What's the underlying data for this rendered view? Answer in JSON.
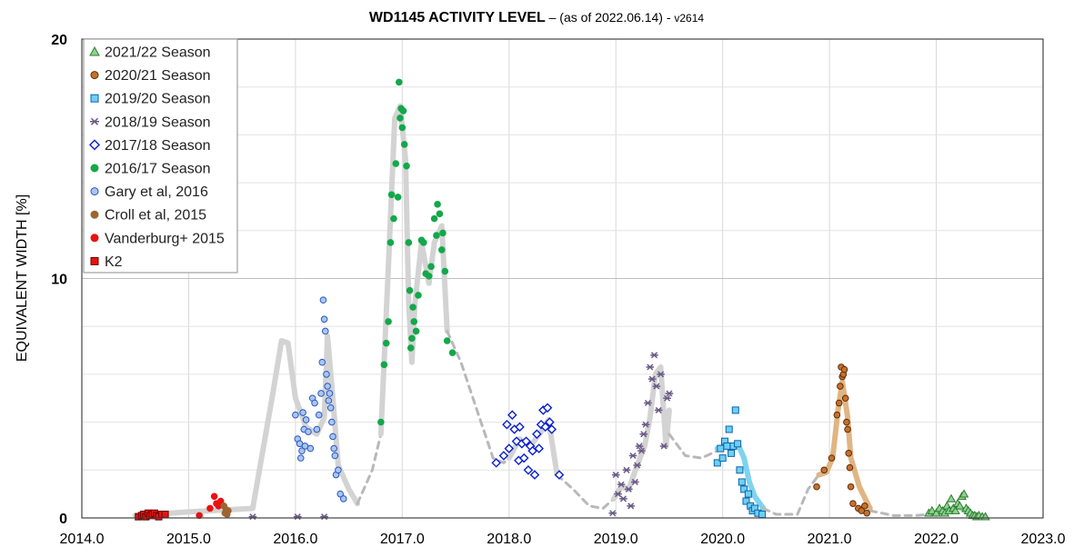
{
  "chart_data": {
    "type": "scatter",
    "title": "WD1145 ACTIVITY LEVEL",
    "subtitle": " – (as of 2022.06.14) - ",
    "version": "v2614",
    "xlabel": "",
    "ylabel": "EQUIVALENT WIDTH [%]",
    "xlim": [
      2014.0,
      2023.0
    ],
    "ylim": [
      0,
      20
    ],
    "x_ticks": [
      "2014.0",
      "2015.0",
      "2016.0",
      "2017.0",
      "2018.0",
      "2019.0",
      "2020.0",
      "2021.0",
      "2022.0",
      "2023.0"
    ],
    "y_ticks": [
      "0",
      "10",
      "20"
    ],
    "grid": true,
    "legend_position": "top-left",
    "trend_lines": [
      {
        "style": "solid",
        "color": "#d3d3d3",
        "x": [
          2015.0,
          2015.6,
          2015.8,
          2015.9,
          2016.0,
          2016.1,
          2016.2,
          2016.3,
          2016.35,
          2016.4,
          2016.5,
          2016.6
        ]
      },
      {
        "style": "solid",
        "color": "#d3d3d3",
        "points": [
          [
            2014.5,
            0.1
          ],
          [
            2015.0,
            0.25
          ],
          [
            2015.6,
            0.4
          ],
          [
            2015.78,
            5.0
          ],
          [
            2015.87,
            7.4
          ],
          [
            2015.93,
            7.3
          ],
          [
            2016.0,
            5.0
          ],
          [
            2016.1,
            3.8
          ],
          [
            2016.2,
            3.5
          ],
          [
            2016.27,
            4.2
          ],
          [
            2016.3,
            7.6
          ],
          [
            2016.35,
            5.0
          ],
          [
            2016.4,
            2.2
          ],
          [
            2016.5,
            1.2
          ],
          [
            2016.58,
            0.6
          ]
        ]
      },
      {
        "style": "dashed",
        "color": "#b8b8b8",
        "points": [
          [
            2016.58,
            0.6
          ],
          [
            2016.72,
            2.0
          ],
          [
            2016.8,
            3.5
          ]
        ]
      },
      {
        "style": "solid",
        "color": "#d3d3d3",
        "points": [
          [
            2016.8,
            3.5
          ],
          [
            2016.87,
            10.5
          ],
          [
            2016.93,
            16.7
          ],
          [
            2016.98,
            17.2
          ],
          [
            2017.03,
            15.0
          ],
          [
            2017.06,
            9.0
          ],
          [
            2017.09,
            6.5
          ],
          [
            2017.12,
            9.0
          ],
          [
            2017.18,
            11.5
          ],
          [
            2017.25,
            9.8
          ],
          [
            2017.3,
            11.5
          ],
          [
            2017.37,
            12.2
          ],
          [
            2017.42,
            7.8
          ]
        ]
      },
      {
        "style": "dashed",
        "color": "#b8b8b8",
        "points": [
          [
            2017.42,
            7.8
          ],
          [
            2017.55,
            6.5
          ],
          [
            2017.7,
            4.5
          ],
          [
            2017.85,
            2.5
          ],
          [
            2017.95,
            2.3
          ],
          [
            2018.0,
            2.5
          ]
        ]
      },
      {
        "style": "solid",
        "color": "#d3d3d3",
        "points": [
          [
            2018.0,
            2.5
          ],
          [
            2018.1,
            3.3
          ],
          [
            2018.2,
            3.0
          ],
          [
            2018.3,
            3.6
          ],
          [
            2018.37,
            4.1
          ],
          [
            2018.45,
            1.8
          ]
        ]
      },
      {
        "style": "dashed",
        "color": "#b8b8b8",
        "points": [
          [
            2018.45,
            1.8
          ],
          [
            2018.6,
            1.2
          ],
          [
            2018.75,
            0.5
          ],
          [
            2018.88,
            0.4
          ],
          [
            2018.98,
            0.8
          ]
        ]
      },
      {
        "style": "solid",
        "color": "#d3d3d3",
        "points": [
          [
            2018.98,
            0.8
          ],
          [
            2019.05,
            1.3
          ],
          [
            2019.12,
            1.2
          ],
          [
            2019.2,
            2.2
          ],
          [
            2019.27,
            3.0
          ],
          [
            2019.32,
            4.2
          ],
          [
            2019.37,
            6.0
          ],
          [
            2019.42,
            6.3
          ],
          [
            2019.47,
            3.0
          ],
          [
            2019.5,
            4.5
          ]
        ]
      },
      {
        "style": "dashed",
        "color": "#b8b8b8",
        "points": [
          [
            2019.5,
            3.5
          ],
          [
            2019.65,
            2.6
          ],
          [
            2019.8,
            2.5
          ],
          [
            2019.95,
            2.8
          ]
        ]
      },
      {
        "style": "solid",
        "color": "#7fd3ee",
        "points": [
          [
            2019.95,
            2.9
          ],
          [
            2020.05,
            3.0
          ],
          [
            2020.15,
            3.0
          ],
          [
            2020.2,
            2.5
          ],
          [
            2020.25,
            1.5
          ],
          [
            2020.3,
            0.9
          ],
          [
            2020.38,
            0.4
          ]
        ]
      },
      {
        "style": "dashed",
        "color": "#b8b8b8",
        "points": [
          [
            2020.38,
            0.4
          ],
          [
            2020.5,
            0.15
          ],
          [
            2020.7,
            0.15
          ],
          [
            2020.8,
            1.2
          ],
          [
            2020.9,
            1.8
          ]
        ]
      },
      {
        "style": "solid",
        "color": "#e0b583",
        "points": [
          [
            2020.9,
            1.8
          ],
          [
            2020.97,
            1.9
          ],
          [
            2021.03,
            2.5
          ],
          [
            2021.08,
            4.5
          ],
          [
            2021.12,
            5.7
          ],
          [
            2021.17,
            4.2
          ],
          [
            2021.2,
            2.5
          ],
          [
            2021.28,
            1.3
          ],
          [
            2021.38,
            0.4
          ]
        ]
      },
      {
        "style": "dashed",
        "color": "#b8b8b8",
        "points": [
          [
            2021.38,
            0.3
          ],
          [
            2021.6,
            0.1
          ],
          [
            2021.8,
            0.1
          ],
          [
            2021.95,
            0.15
          ]
        ]
      },
      {
        "style": "solid",
        "color": "#9ee0b0",
        "points": [
          [
            2021.95,
            0.15
          ],
          [
            2022.1,
            0.3
          ],
          [
            2022.2,
            0.5
          ],
          [
            2022.3,
            0.2
          ],
          [
            2022.45,
            0.05
          ]
        ]
      }
    ],
    "series": [
      {
        "name": "2021/22 Season",
        "marker": "triangle",
        "fill": "#8fd18f",
        "stroke": "#2e7d32",
        "x": [
          2021.93,
          2021.96,
          2022.0,
          2022.03,
          2022.06,
          2022.08,
          2022.1,
          2022.12,
          2022.14,
          2022.16,
          2022.18,
          2022.2,
          2022.22,
          2022.24,
          2022.26,
          2022.28,
          2022.3,
          2022.32,
          2022.34,
          2022.36,
          2022.38,
          2022.4,
          2022.43,
          2022.46
        ],
        "y": [
          0.2,
          0.3,
          0.2,
          0.4,
          0.3,
          0.2,
          0.5,
          0.3,
          0.8,
          0.4,
          0.3,
          0.6,
          0.5,
          0.9,
          1.0,
          0.4,
          0.3,
          0.2,
          0.1,
          0.1,
          0.05,
          0.1,
          0.05,
          0.05
        ]
      },
      {
        "name": "2020/21 Season",
        "marker": "circle",
        "fill": "#c8702a",
        "stroke": "#5a2e0e",
        "x": [
          2020.88,
          2020.95,
          2021.02,
          2021.07,
          2021.09,
          2021.1,
          2021.11,
          2021.12,
          2021.13,
          2021.14,
          2021.15,
          2021.16,
          2021.17,
          2021.18,
          2021.19,
          2021.2,
          2021.22,
          2021.27,
          2021.3,
          2021.33,
          2021.35
        ],
        "y": [
          1.3,
          2.0,
          2.5,
          4.3,
          4.8,
          5.5,
          6.3,
          5.9,
          6.0,
          6.2,
          5.0,
          4.0,
          3.7,
          2.7,
          2.1,
          1.3,
          0.6,
          0.4,
          0.3,
          0.5,
          0.2
        ],
        "x2": [],
        "y2": []
      },
      {
        "name": "2019/20 Season",
        "marker": "square",
        "fill": "#6ecff6",
        "stroke": "#0b63a8",
        "x": [
          2019.95,
          2019.98,
          2020.0,
          2020.02,
          2020.04,
          2020.06,
          2020.08,
          2020.1,
          2020.12,
          2020.14,
          2020.16,
          2020.18,
          2020.2,
          2020.22,
          2020.24,
          2020.26,
          2020.28,
          2020.3,
          2020.33,
          2020.37
        ],
        "y": [
          2.3,
          2.9,
          2.5,
          3.2,
          3.0,
          3.7,
          2.7,
          3.0,
          4.5,
          3.1,
          2.0,
          1.5,
          1.2,
          0.7,
          1.0,
          0.5,
          0.3,
          0.4,
          0.2,
          0.15
        ]
      },
      {
        "name": "2018/19 Season",
        "marker": "star",
        "fill": "none",
        "stroke": "#6b5a86",
        "x": [
          2015.6,
          2016.02,
          2016.27,
          2018.97,
          2019.0,
          2019.02,
          2019.05,
          2019.07,
          2019.1,
          2019.12,
          2019.14,
          2019.16,
          2019.18,
          2019.2,
          2019.22,
          2019.24,
          2019.26,
          2019.28,
          2019.3,
          2019.32,
          2019.34,
          2019.36,
          2019.38,
          2019.4,
          2019.42,
          2019.45,
          2019.48,
          2019.5
        ],
        "y": [
          0.05,
          0.05,
          0.05,
          0.2,
          1.8,
          1.0,
          1.4,
          0.8,
          2.0,
          1.2,
          0.5,
          2.6,
          1.5,
          2.2,
          3.0,
          2.8,
          3.5,
          3.9,
          4.8,
          6.3,
          5.8,
          6.8,
          5.5,
          4.5,
          6.0,
          3.0,
          5.0,
          5.2
        ]
      },
      {
        "name": "2017/18 Season",
        "marker": "diamond",
        "fill": "#ffffff",
        "stroke": "#0a1fd1",
        "x": [
          2017.88,
          2017.95,
          2017.98,
          2018.0,
          2018.03,
          2018.05,
          2018.07,
          2018.09,
          2018.1,
          2018.12,
          2018.14,
          2018.16,
          2018.18,
          2018.2,
          2018.22,
          2018.24,
          2018.26,
          2018.28,
          2018.3,
          2018.32,
          2018.34,
          2018.36,
          2018.38,
          2018.4,
          2018.47
        ],
        "y": [
          2.3,
          2.6,
          3.9,
          2.9,
          4.3,
          3.7,
          3.2,
          2.4,
          3.8,
          3.1,
          2.5,
          3.2,
          2.0,
          3.0,
          2.8,
          1.8,
          3.5,
          2.9,
          3.9,
          4.5,
          3.8,
          4.6,
          4.0,
          3.7,
          1.8
        ]
      },
      {
        "name": "2016/17 Season",
        "marker": "circle",
        "fill": "#13a84a",
        "stroke": "#13a84a",
        "x": [
          2016.8,
          2016.83,
          2016.85,
          2016.87,
          2016.89,
          2016.9,
          2016.92,
          2016.94,
          2016.96,
          2016.97,
          2016.98,
          2016.99,
          2017.0,
          2017.01,
          2017.02,
          2017.04,
          2017.06,
          2017.07,
          2017.08,
          2017.09,
          2017.1,
          2017.11,
          2017.13,
          2017.15,
          2017.18,
          2017.2,
          2017.22,
          2017.25,
          2017.27,
          2017.3,
          2017.32,
          2017.33,
          2017.35,
          2017.37,
          2017.38,
          2017.4,
          2017.42,
          2017.47
        ],
        "y": [
          4.0,
          6.4,
          7.3,
          8.2,
          11.5,
          13.5,
          12.5,
          14.8,
          13.4,
          18.2,
          16.7,
          17.1,
          16.3,
          17.0,
          15.6,
          14.7,
          11.5,
          9.5,
          7.1,
          7.5,
          8.8,
          8.2,
          7.8,
          9.3,
          11.6,
          11.5,
          10.2,
          10.1,
          10.5,
          12.5,
          11.8,
          13.1,
          12.7,
          11.2,
          11.9,
          10.3,
          7.4,
          6.9
        ]
      },
      {
        "name": "Gary et al, 2016",
        "marker": "circle",
        "fill": "#a9c6ee",
        "stroke": "#2a56c6",
        "x": [
          2016.0,
          2016.02,
          2016.04,
          2016.05,
          2016.06,
          2016.07,
          2016.08,
          2016.09,
          2016.1,
          2016.12,
          2016.14,
          2016.16,
          2016.18,
          2016.2,
          2016.22,
          2016.24,
          2016.25,
          2016.26,
          2016.27,
          2016.28,
          2016.29,
          2016.3,
          2016.31,
          2016.32,
          2016.33,
          2016.34,
          2016.35,
          2016.36,
          2016.37,
          2016.38,
          2016.4,
          2016.42,
          2016.45
        ],
        "y": [
          4.3,
          3.3,
          3.1,
          2.5,
          2.8,
          4.4,
          3.7,
          3.0,
          4.1,
          3.6,
          2.9,
          5.0,
          4.8,
          3.7,
          4.3,
          5.2,
          6.5,
          9.1,
          8.3,
          7.8,
          6.0,
          5.5,
          4.9,
          5.2,
          4.6,
          4.0,
          3.4,
          2.9,
          2.6,
          1.8,
          2.0,
          1.0,
          0.8
        ]
      },
      {
        "name": "Croll et al, 2015",
        "marker": "circle",
        "fill": "#9c6430",
        "stroke": "#9c6430",
        "x": [
          2015.33,
          2015.34,
          2015.35,
          2015.36,
          2015.37
        ],
        "y": [
          0.5,
          0.2,
          0.35,
          0.15,
          0.3
        ]
      },
      {
        "name": "Vanderburg+ 2015",
        "marker": "circle",
        "fill": "#e81212",
        "stroke": "#e81212",
        "x": [
          2015.1,
          2015.2,
          2015.24,
          2015.26,
          2015.28,
          2015.3
        ],
        "y": [
          0.1,
          0.4,
          0.9,
          0.6,
          0.5,
          0.7
        ]
      },
      {
        "name": "K2",
        "marker": "square",
        "fill": "#e81212",
        "stroke": "#6a0000",
        "x": [
          2014.53,
          2014.56,
          2014.58,
          2014.6,
          2014.62,
          2014.64,
          2014.66,
          2014.68,
          2014.7,
          2014.72,
          2014.75,
          2014.78
        ],
        "y": [
          0.05,
          0.1,
          0.15,
          0.05,
          0.2,
          0.1,
          0.15,
          0.2,
          0.1,
          0.05,
          0.15,
          0.15
        ]
      }
    ],
    "legend": [
      {
        "label": "2021/22 Season",
        "marker": "triangle",
        "fill": "#8fd18f",
        "stroke": "#2e7d32"
      },
      {
        "label": "2020/21 Season",
        "marker": "circle",
        "fill": "#c8702a",
        "stroke": "#5a2e0e"
      },
      {
        "label": "2019/20 Season",
        "marker": "square",
        "fill": "#6ecff6",
        "stroke": "#0b63a8"
      },
      {
        "label": "2018/19 Season",
        "marker": "star",
        "fill": "none",
        "stroke": "#6b5a86"
      },
      {
        "label": "2017/18 Season",
        "marker": "diamond",
        "fill": "#ffffff",
        "stroke": "#0a1fd1"
      },
      {
        "label": "2016/17 Season",
        "marker": "circle",
        "fill": "#13a84a",
        "stroke": "#13a84a"
      },
      {
        "label": "Gary et al, 2016",
        "marker": "circle",
        "fill": "#a9c6ee",
        "stroke": "#2a56c6"
      },
      {
        "label": "Croll et al, 2015",
        "marker": "circle",
        "fill": "#9c6430",
        "stroke": "#9c6430"
      },
      {
        "label": "Vanderburg+ 2015",
        "marker": "circle",
        "fill": "#e81212",
        "stroke": "#e81212"
      },
      {
        "label": "K2",
        "marker": "square",
        "fill": "#e81212",
        "stroke": "#6a0000"
      }
    ]
  }
}
